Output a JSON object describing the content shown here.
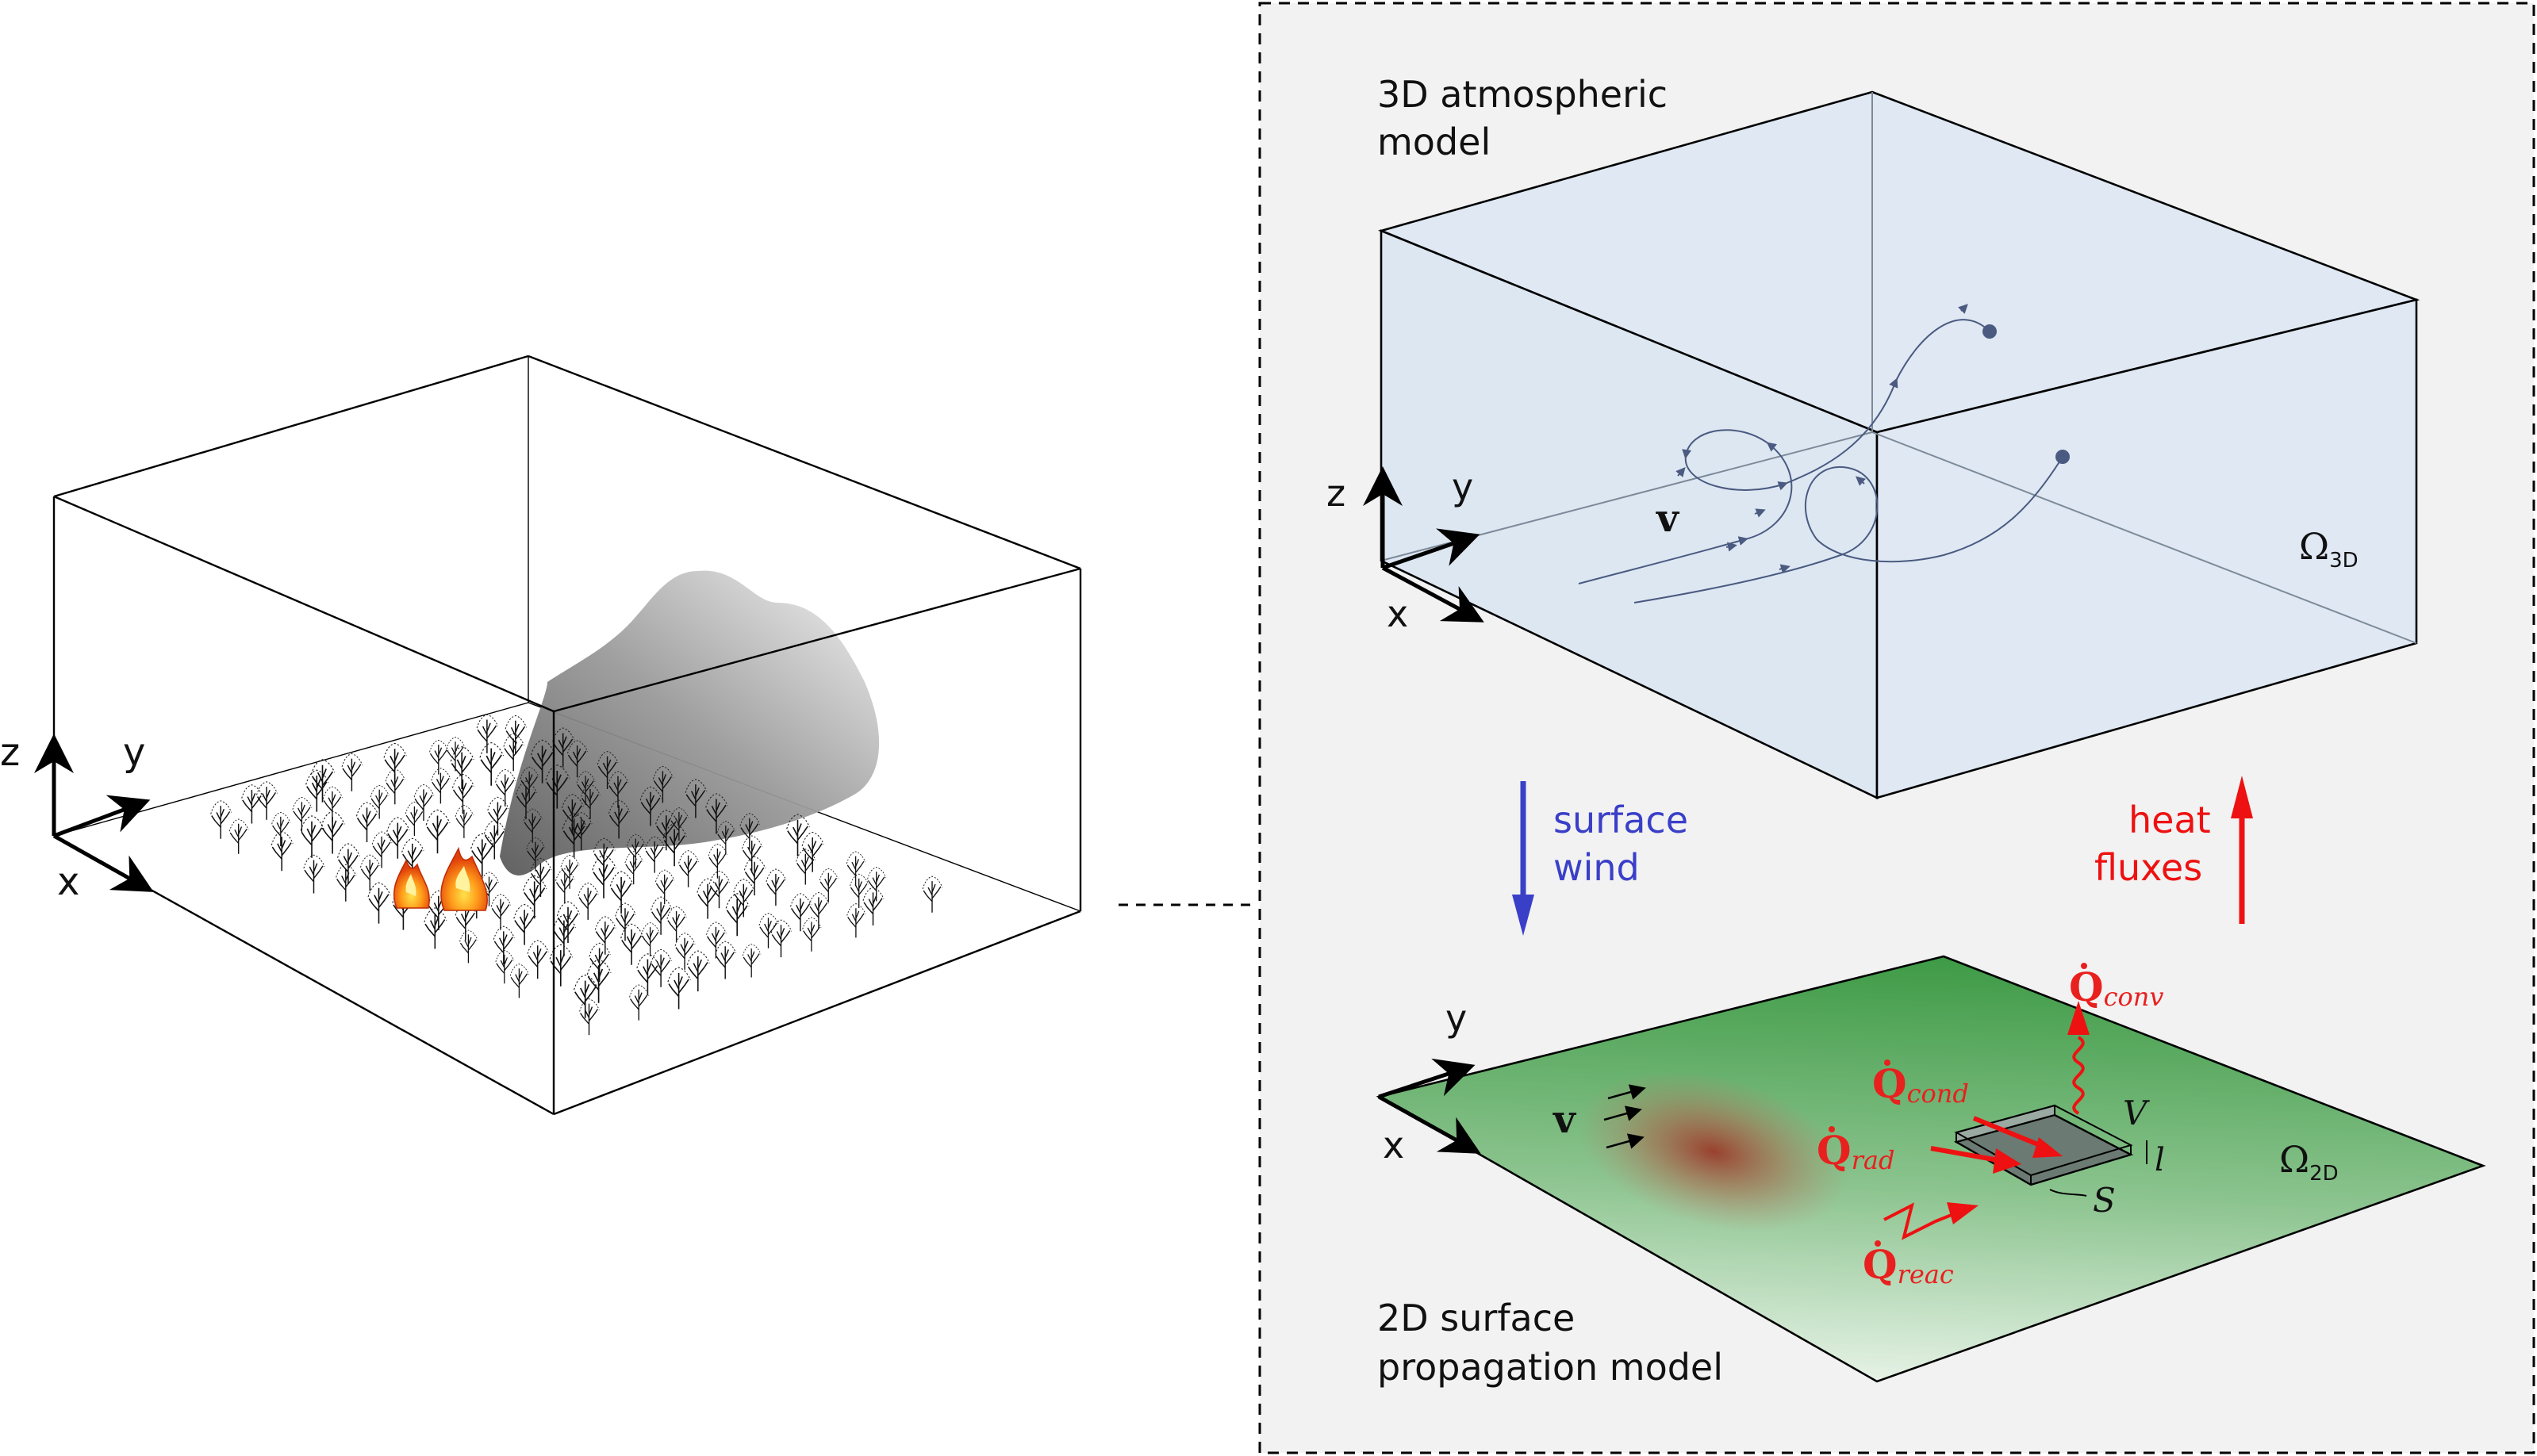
{
  "left_panel": {
    "axes": {
      "z": "z",
      "y": "y",
      "x": "x"
    }
  },
  "right_panel": {
    "atmo_label_line1": "3D atmospheric",
    "atmo_label_line2": "model",
    "atmo_axes": {
      "z": "z",
      "y": "y",
      "x": "x"
    },
    "atmo_velocity": "v",
    "omega_3d": "Ω",
    "omega_3d_sub": "3D",
    "surface_wind_line1": "surface",
    "surface_wind_line2": "wind",
    "heat_fluxes_line1": "heat",
    "heat_fluxes_line2": "fluxes",
    "surface_axes": {
      "y": "y",
      "x": "x"
    },
    "surface_velocity": "v",
    "q_conv": "Q",
    "q_conv_sub": "conv",
    "q_cond": "Q",
    "q_cond_sub": "cond",
    "q_rad": "Q",
    "q_rad_sub": "rad",
    "q_reac": "Q",
    "q_reac_sub": "reac",
    "cell_volume": "V",
    "cell_thickness": "l",
    "cell_surface": "S",
    "omega_2d": "Ω",
    "omega_2d_sub": "2D",
    "surface_label_line1": "2D surface",
    "surface_label_line2": "propagation model"
  },
  "colors": {
    "wind_arrow": "#3a3fc8",
    "heat_arrow": "#ee1111",
    "flux_text": "#e8201e",
    "atmo_fill": "#dfe8f3",
    "panel_bg": "#f2f2f2",
    "surface_green": "#3d9a45"
  }
}
